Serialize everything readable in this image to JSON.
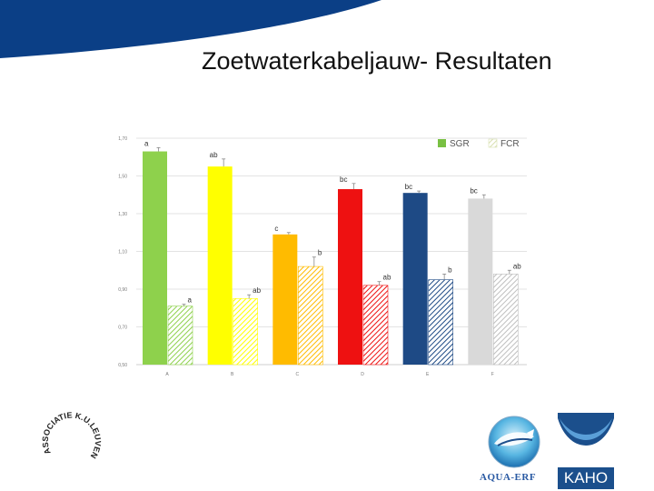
{
  "slide": {
    "title": "Zoetwaterkabeljauw- Resultaten"
  },
  "colors": {
    "banner": "#0b3f86",
    "sgr_legend": "#79c043",
    "fcr_legend": "#d8dfb0"
  },
  "logos": {
    "left_text": "ASSOCIATIE K.U.LEUVEN",
    "aqua_text": "AQUA-ERF",
    "kaho_text": "KAHO"
  },
  "chart_data": {
    "type": "bar",
    "categories": [
      "A",
      "B",
      "C",
      "D",
      "E",
      "F"
    ],
    "ytick_labels": [
      "0,50",
      "0,70",
      "0,90",
      "1,10",
      "1,30",
      "1,50",
      "1,70"
    ],
    "ylim": [
      0.5,
      1.7
    ],
    "grid": true,
    "legend_position": "top-right",
    "series": [
      {
        "name": "SGR",
        "values": [
          1.63,
          1.55,
          1.19,
          1.43,
          1.41,
          1.38
        ],
        "errors": [
          0.02,
          0.04,
          0.01,
          0.03,
          0.01,
          0.02
        ],
        "labels": [
          "a",
          "ab",
          "c",
          "bc",
          "bc",
          "bc"
        ],
        "colors": [
          "#8ed14c",
          "#ffff00",
          "#ffbb00",
          "#ee1111",
          "#1e4a85",
          "#d9d9d9"
        ],
        "hatched": false
      },
      {
        "name": "FCR",
        "values": [
          0.81,
          0.85,
          1.02,
          0.92,
          0.95,
          0.98
        ],
        "errors": [
          0.01,
          0.02,
          0.05,
          0.02,
          0.03,
          0.02
        ],
        "labels": [
          "a",
          "ab",
          "b",
          "ab",
          "b",
          "ab"
        ],
        "colors": [
          "#8ed14c",
          "#ffff00",
          "#ffbb00",
          "#ee1111",
          "#1e4a85",
          "#bfbfbf"
        ],
        "hatched": true
      }
    ]
  }
}
